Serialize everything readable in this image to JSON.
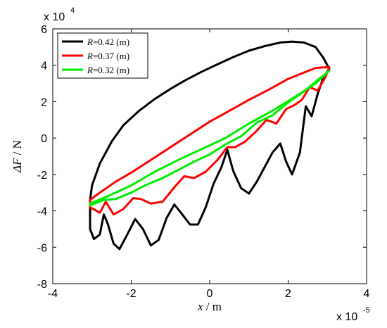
{
  "chart_data": {
    "type": "line",
    "xlabel_var": "x",
    "xlabel_unit": " / m",
    "ylabel_var": "ΔF",
    "ylabel_unit": " / N",
    "xlim": [
      -4,
      4
    ],
    "ylim": [
      -8,
      6
    ],
    "x_multiplier": "x 10",
    "x_exponent": "-5",
    "y_multiplier": "x 10",
    "y_exponent": "4",
    "xticks": [
      -4,
      -2,
      0,
      2,
      4
    ],
    "yticks": [
      -8,
      -6,
      -4,
      -2,
      0,
      2,
      4,
      6
    ],
    "xtick_labels": [
      "-4",
      "-2",
      "0",
      "2",
      "4"
    ],
    "ytick_labels": [
      "-8",
      "-6",
      "-4",
      "-2",
      "0",
      "2",
      "4",
      "6"
    ],
    "grid": false,
    "legend_position": "top-left",
    "series": [
      {
        "name": "R=0.42 (m)",
        "legend_var": "R",
        "legend_value": "=0.42 (m)",
        "color": "#000000",
        "upper": {
          "x": [
            -3.05,
            -3.0,
            -2.8,
            -2.5,
            -2.2,
            -1.8,
            -1.4,
            -1.0,
            -0.6,
            -0.2,
            0.2,
            0.6,
            1.0,
            1.4,
            1.8,
            2.1,
            2.4,
            2.7,
            2.9,
            3.05
          ],
          "y": [
            -3.4,
            -2.6,
            -1.4,
            -0.2,
            0.7,
            1.5,
            2.15,
            2.7,
            3.2,
            3.65,
            4.05,
            4.45,
            4.8,
            5.05,
            5.25,
            5.3,
            5.25,
            5.0,
            4.4,
            3.8
          ]
        },
        "lower": {
          "x": [
            -3.05,
            -3.05,
            -2.95,
            -2.8,
            -2.7,
            -2.6,
            -2.45,
            -2.3,
            -2.1,
            -1.9,
            -1.7,
            -1.5,
            -1.3,
            -1.1,
            -0.9,
            -0.7,
            -0.5,
            -0.3,
            -0.1,
            0.1,
            0.3,
            0.45,
            0.6,
            0.8,
            1.0,
            1.2,
            1.4,
            1.6,
            1.8,
            1.95,
            2.1,
            2.3,
            2.45,
            2.6,
            2.75,
            2.9,
            3.05
          ],
          "y": [
            -3.8,
            -5.0,
            -5.55,
            -5.3,
            -4.2,
            -4.7,
            -5.8,
            -6.1,
            -5.3,
            -4.45,
            -5.0,
            -5.9,
            -5.6,
            -4.4,
            -3.65,
            -4.2,
            -4.75,
            -4.75,
            -3.8,
            -2.5,
            -1.6,
            -0.65,
            -1.8,
            -2.75,
            -3.05,
            -2.4,
            -1.6,
            -0.8,
            -0.3,
            -1.3,
            -2.0,
            -0.8,
            1.75,
            1.2,
            2.4,
            3.35,
            3.8
          ]
        }
      },
      {
        "name": "R=0.37 (m)",
        "legend_var": "R",
        "legend_value": "=0.37 (m)",
        "color": "#ff0000",
        "upper": {
          "x": [
            -3.05,
            -2.8,
            -2.4,
            -2.0,
            -1.5,
            -1.0,
            -0.5,
            0.0,
            0.5,
            1.0,
            1.5,
            2.0,
            2.4,
            2.7,
            3.05
          ],
          "y": [
            -3.4,
            -3.0,
            -2.4,
            -1.9,
            -1.2,
            -0.5,
            0.2,
            0.9,
            1.5,
            2.1,
            2.65,
            3.25,
            3.6,
            3.85,
            3.9
          ]
        },
        "lower": {
          "x": [
            -3.05,
            -2.8,
            -2.65,
            -2.45,
            -2.2,
            -1.95,
            -1.75,
            -1.5,
            -1.2,
            -0.9,
            -0.65,
            -0.4,
            -0.1,
            0.2,
            0.45,
            0.65,
            0.9,
            1.2,
            1.45,
            1.7,
            1.95,
            2.15,
            2.35,
            2.55,
            2.75,
            2.95,
            3.05
          ],
          "y": [
            -3.8,
            -4.1,
            -3.5,
            -4.2,
            -3.9,
            -3.3,
            -3.35,
            -3.6,
            -3.5,
            -2.7,
            -2.1,
            -2.2,
            -1.85,
            -1.2,
            -0.5,
            -0.5,
            -0.2,
            0.4,
            1.0,
            0.8,
            1.6,
            1.8,
            2.1,
            2.8,
            2.6,
            3.35,
            3.9
          ]
        }
      },
      {
        "name": "R=0.32 (m)",
        "legend_var": "R",
        "legend_value": "=0.32 (m)",
        "color": "#00ee00",
        "upper": {
          "x": [
            -3.05,
            -2.6,
            -2.0,
            -1.4,
            -0.8,
            -0.2,
            0.4,
            1.0,
            1.6,
            2.2,
            2.7,
            3.05
          ],
          "y": [
            -3.6,
            -3.2,
            -2.6,
            -1.85,
            -1.2,
            -0.6,
            0.0,
            0.8,
            1.5,
            2.3,
            3.0,
            3.7
          ]
        },
        "lower": {
          "x": [
            -3.05,
            -2.7,
            -2.4,
            -2.0,
            -1.6,
            -1.2,
            -0.8,
            -0.4,
            0.0,
            0.4,
            0.8,
            1.2,
            1.6,
            2.0,
            2.4,
            2.7,
            3.05
          ],
          "y": [
            -3.7,
            -3.4,
            -3.35,
            -3.0,
            -2.55,
            -2.2,
            -1.75,
            -1.3,
            -0.9,
            -0.35,
            0.1,
            0.85,
            1.25,
            1.95,
            2.55,
            3.1,
            3.7
          ]
        }
      }
    ]
  }
}
